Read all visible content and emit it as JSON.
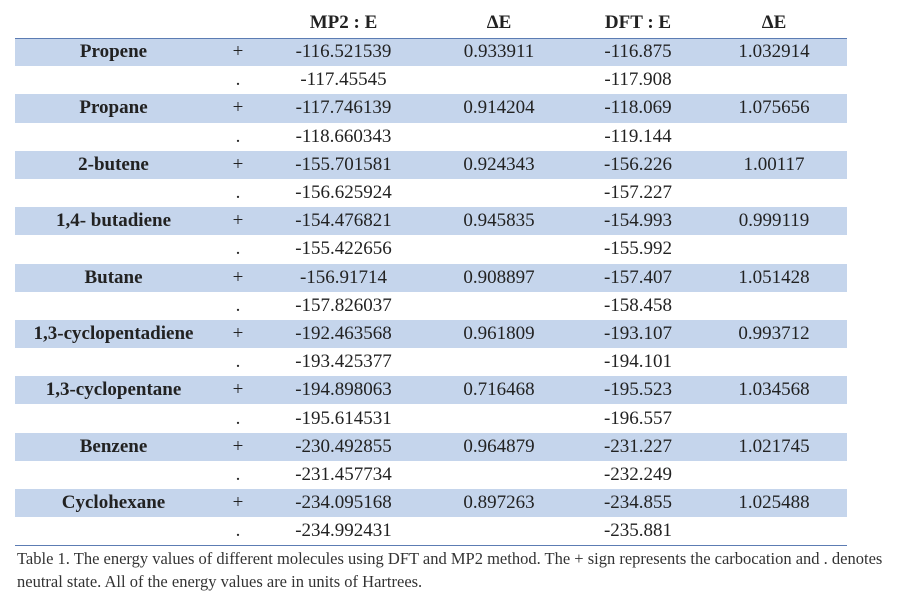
{
  "table": {
    "headers": [
      "",
      "",
      "MP2 : E",
      "ΔE",
      "DFT : E",
      "ΔE"
    ],
    "rows": [
      {
        "name": "Propene",
        "state": "+",
        "mp2": "-116.521539",
        "mp2_de": "0.933911",
        "dft": "-116.875",
        "dft_de": "1.032914"
      },
      {
        "name": "",
        "state": ".",
        "mp2": "-117.45545",
        "mp2_de": "",
        "dft": "-117.908",
        "dft_de": ""
      },
      {
        "name": "Propane",
        "state": "+",
        "mp2": "-117.746139",
        "mp2_de": "0.914204",
        "dft": "-118.069",
        "dft_de": "1.075656"
      },
      {
        "name": "",
        "state": ".",
        "mp2": "-118.660343",
        "mp2_de": "",
        "dft": "-119.144",
        "dft_de": ""
      },
      {
        "name": "2-butene",
        "state": "+",
        "mp2": "-155.701581",
        "mp2_de": "0.924343",
        "dft": "-156.226",
        "dft_de": "1.00117"
      },
      {
        "name": "",
        "state": ".",
        "mp2": "-156.625924",
        "mp2_de": "",
        "dft": "-157.227",
        "dft_de": ""
      },
      {
        "name": "1,4- butadiene",
        "state": "+",
        "mp2": "-154.476821",
        "mp2_de": "0.945835",
        "dft": "-154.993",
        "dft_de": "0.999119"
      },
      {
        "name": "",
        "state": ".",
        "mp2": "-155.422656",
        "mp2_de": "",
        "dft": "-155.992",
        "dft_de": ""
      },
      {
        "name": "Butane",
        "state": "+",
        "mp2": "-156.91714",
        "mp2_de": "0.908897",
        "dft": "-157.407",
        "dft_de": "1.051428"
      },
      {
        "name": "",
        "state": ".",
        "mp2": "-157.826037",
        "mp2_de": "",
        "dft": "-158.458",
        "dft_de": ""
      },
      {
        "name": "1,3-cyclopentadiene",
        "state": "+",
        "mp2": "-192.463568",
        "mp2_de": "0.961809",
        "dft": "-193.107",
        "dft_de": "0.993712"
      },
      {
        "name": "",
        "state": ".",
        "mp2": "-193.425377",
        "mp2_de": "",
        "dft": "-194.101",
        "dft_de": ""
      },
      {
        "name": "1,3-cyclopentane",
        "state": "+",
        "mp2": "-194.898063",
        "mp2_de": "0.716468",
        "dft": "-195.523",
        "dft_de": "1.034568"
      },
      {
        "name": "",
        "state": ".",
        "mp2": "-195.614531",
        "mp2_de": "",
        "dft": "-196.557",
        "dft_de": ""
      },
      {
        "name": "Benzene",
        "state": "+",
        "mp2": "-230.492855",
        "mp2_de": "0.964879",
        "dft": "-231.227",
        "dft_de": "1.021745"
      },
      {
        "name": "",
        "state": ".",
        "mp2": "-231.457734",
        "mp2_de": "",
        "dft": "-232.249",
        "dft_de": ""
      },
      {
        "name": "Cyclohexane",
        "state": "+",
        "mp2": "-234.095168",
        "mp2_de": "0.897263",
        "dft": "-234.855",
        "dft_de": "1.025488"
      },
      {
        "name": "",
        "state": ".",
        "mp2": "-234.992431",
        "mp2_de": "",
        "dft": "-235.881",
        "dft_de": ""
      }
    ]
  },
  "caption": "Table 1. The energy values of different molecules using DFT and MP2 method. The + sign represents the carbocation and . denotes neutral state. All of the energy values are in units of Hartrees.",
  "colors": {
    "shaded_row": "#c5d5ec",
    "rule": "#5c7cb3",
    "text": "#222222"
  }
}
